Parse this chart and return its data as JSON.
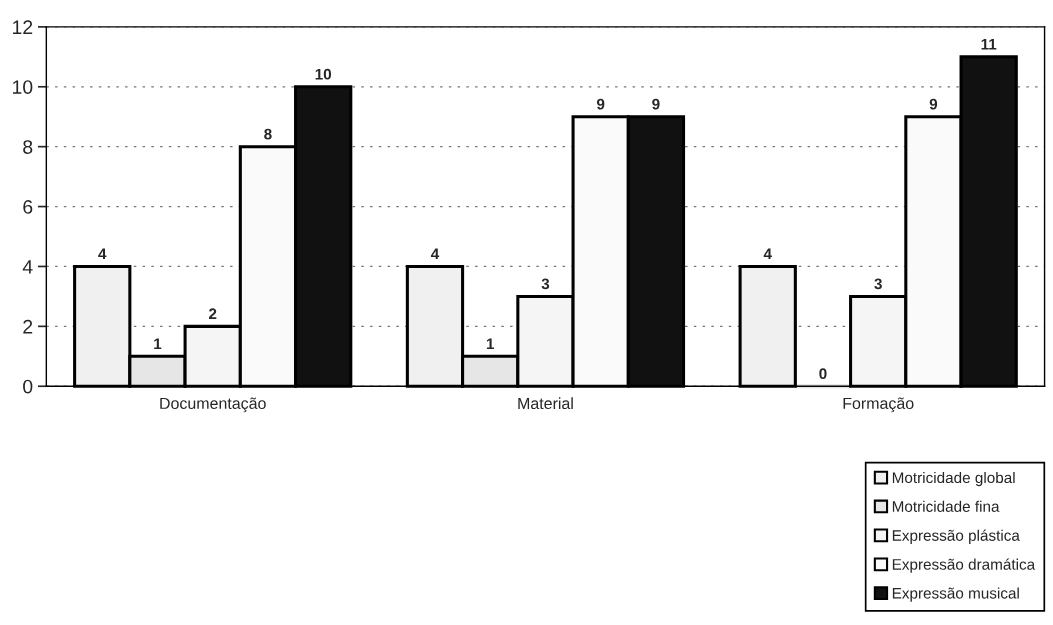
{
  "chart_data": {
    "type": "bar",
    "categories": [
      "Documentação",
      "Material",
      "Formação"
    ],
    "series": [
      {
        "name": "Motricidade global",
        "color": "#f0f0f0",
        "values": [
          4,
          4,
          4
        ]
      },
      {
        "name": "Motricidade fina",
        "color": "#e6e6e6",
        "values": [
          1,
          1,
          0
        ]
      },
      {
        "name": "Expressão plástica",
        "color": "#f5f5f5",
        "values": [
          2,
          3,
          3
        ]
      },
      {
        "name": "Expressão dramática",
        "color": "#fafafa",
        "values": [
          8,
          9,
          9
        ]
      },
      {
        "name": "Expressão musical",
        "color": "#111111",
        "values": [
          10,
          9,
          11
        ]
      }
    ],
    "ylim": [
      0,
      12
    ],
    "yticks": [
      0,
      2,
      4,
      6,
      8,
      10,
      12
    ],
    "grid": "y",
    "legend": "bottom right",
    "data_labels": true
  }
}
